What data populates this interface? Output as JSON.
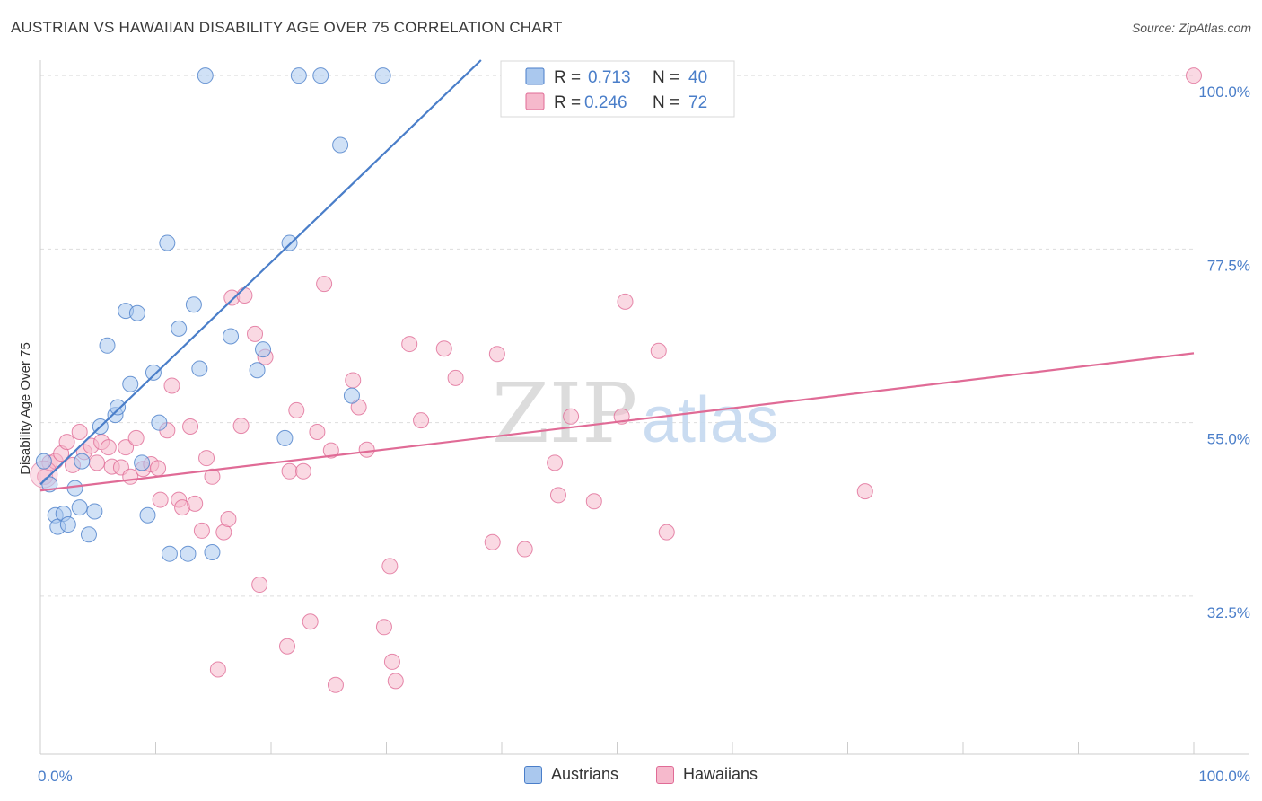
{
  "title": "AUSTRIAN VS HAWAIIAN DISABILITY AGE OVER 75 CORRELATION CHART",
  "source": "Source: ZipAtlas.com",
  "watermark": {
    "zip": "ZIP",
    "atlas": "atlas"
  },
  "colors": {
    "blue": "#4a7ec9",
    "blue_fill": "#aac8ee",
    "pink": "#e06b96",
    "pink_fill": "#f6b9cc",
    "grid": "#dddddd"
  },
  "legend": {
    "rows": [
      {
        "r_label": "R =",
        "r_value": "0.713",
        "n_label": "N =",
        "n_value": "40"
      },
      {
        "r_label": "R =",
        "r_value": "0.246",
        "n_label": "N =",
        "n_value": "72"
      }
    ]
  },
  "bottom_legend": [
    "Austrians",
    "Hawaiians"
  ],
  "chart_data": {
    "type": "scatter",
    "ylabel": "Disability Age Over 75",
    "x_tick_labels": [
      "0.0%",
      "100.0%"
    ],
    "y_tick_labels": [
      "100.0%",
      "77.5%",
      "55.0%",
      "32.5%"
    ],
    "y_ticks": [
      100.0,
      77.5,
      55.0,
      32.5
    ],
    "xlim": [
      0,
      100
    ],
    "ylim": [
      12,
      102
    ],
    "grid": true,
    "legend_position": "top-center",
    "series": [
      {
        "name": "Austrians",
        "color": "#4a7ec9",
        "r": 0.713,
        "n": 40,
        "trend": {
          "x0": 0,
          "y0": 47.0,
          "x1": 38.2,
          "y1": 102.0
        },
        "points": [
          [
            0.3,
            50.0
          ],
          [
            0.8,
            47.0
          ],
          [
            1.3,
            43.0
          ],
          [
            1.5,
            41.5
          ],
          [
            2.0,
            43.2
          ],
          [
            2.4,
            41.8
          ],
          [
            3.0,
            46.5
          ],
          [
            3.4,
            44.0
          ],
          [
            3.6,
            50.0
          ],
          [
            4.2,
            40.5
          ],
          [
            4.7,
            43.5
          ],
          [
            5.2,
            54.5
          ],
          [
            5.8,
            65.0
          ],
          [
            6.5,
            56.0
          ],
          [
            6.7,
            57.0
          ],
          [
            7.4,
            69.5
          ],
          [
            7.8,
            60.0
          ],
          [
            8.4,
            69.2
          ],
          [
            8.8,
            49.8
          ],
          [
            9.3,
            43.0
          ],
          [
            9.8,
            61.5
          ],
          [
            10.3,
            55.0
          ],
          [
            11.0,
            78.3
          ],
          [
            11.2,
            38.0
          ],
          [
            12.0,
            67.2
          ],
          [
            12.8,
            38.0
          ],
          [
            13.3,
            70.3
          ],
          [
            13.8,
            62.0
          ],
          [
            14.3,
            100.0
          ],
          [
            14.9,
            38.2
          ],
          [
            16.5,
            66.2
          ],
          [
            18.8,
            61.8
          ],
          [
            19.3,
            64.5
          ],
          [
            21.2,
            53.0
          ],
          [
            21.6,
            78.3
          ],
          [
            22.4,
            100.0
          ],
          [
            24.3,
            100.0
          ],
          [
            26.0,
            91.0
          ],
          [
            27.0,
            58.5
          ],
          [
            29.7,
            100.0
          ]
        ]
      },
      {
        "name": "Hawaiians",
        "color": "#e06b96",
        "r": 0.246,
        "n": 72,
        "trend": {
          "x0": 0,
          "y0": 46.2,
          "x1": 100,
          "y1": 64.0
        },
        "points": [
          [
            0.4,
            48.0
          ],
          [
            0.8,
            49.8
          ],
          [
            1.3,
            50.0
          ],
          [
            1.8,
            51.0
          ],
          [
            2.3,
            52.5
          ],
          [
            2.8,
            49.5
          ],
          [
            3.4,
            53.8
          ],
          [
            3.8,
            51.2
          ],
          [
            4.4,
            52.0
          ],
          [
            4.9,
            49.8
          ],
          [
            5.3,
            52.5
          ],
          [
            5.9,
            51.8
          ],
          [
            6.2,
            49.3
          ],
          [
            7.0,
            49.2
          ],
          [
            7.4,
            51.8
          ],
          [
            7.8,
            48.0
          ],
          [
            8.3,
            53.0
          ],
          [
            8.9,
            49.0
          ],
          [
            9.6,
            49.6
          ],
          [
            10.2,
            49.1
          ],
          [
            10.4,
            45.0
          ],
          [
            11.0,
            54.0
          ],
          [
            11.4,
            59.8
          ],
          [
            12.0,
            45.0
          ],
          [
            12.3,
            44.0
          ],
          [
            13.0,
            54.5
          ],
          [
            13.4,
            44.5
          ],
          [
            14.0,
            41.0
          ],
          [
            14.4,
            50.4
          ],
          [
            14.9,
            48.0
          ],
          [
            15.4,
            23.0
          ],
          [
            15.9,
            40.8
          ],
          [
            16.3,
            42.5
          ],
          [
            16.6,
            71.2
          ],
          [
            17.4,
            54.6
          ],
          [
            17.7,
            71.5
          ],
          [
            18.6,
            66.5
          ],
          [
            19.0,
            34.0
          ],
          [
            19.5,
            63.5
          ],
          [
            21.4,
            26.0
          ],
          [
            21.6,
            48.7
          ],
          [
            22.2,
            56.6
          ],
          [
            22.8,
            48.7
          ],
          [
            23.4,
            29.2
          ],
          [
            24.0,
            53.8
          ],
          [
            24.6,
            73.0
          ],
          [
            25.2,
            51.4
          ],
          [
            25.6,
            21.0
          ],
          [
            27.1,
            60.5
          ],
          [
            27.6,
            57.0
          ],
          [
            28.3,
            51.5
          ],
          [
            29.8,
            28.5
          ],
          [
            30.3,
            36.4
          ],
          [
            30.5,
            24.0
          ],
          [
            30.8,
            21.5
          ],
          [
            32.0,
            65.2
          ],
          [
            33.0,
            55.3
          ],
          [
            35.0,
            64.6
          ],
          [
            36.0,
            60.8
          ],
          [
            39.2,
            39.5
          ],
          [
            39.6,
            63.9
          ],
          [
            42.0,
            38.6
          ],
          [
            44.6,
            49.8
          ],
          [
            44.9,
            45.6
          ],
          [
            46.0,
            55.8
          ],
          [
            48.0,
            44.8
          ],
          [
            50.4,
            55.8
          ],
          [
            50.7,
            70.7
          ],
          [
            53.6,
            64.3
          ],
          [
            54.3,
            40.8
          ],
          [
            71.5,
            46.1
          ],
          [
            100.0,
            100.0
          ]
        ]
      }
    ]
  }
}
